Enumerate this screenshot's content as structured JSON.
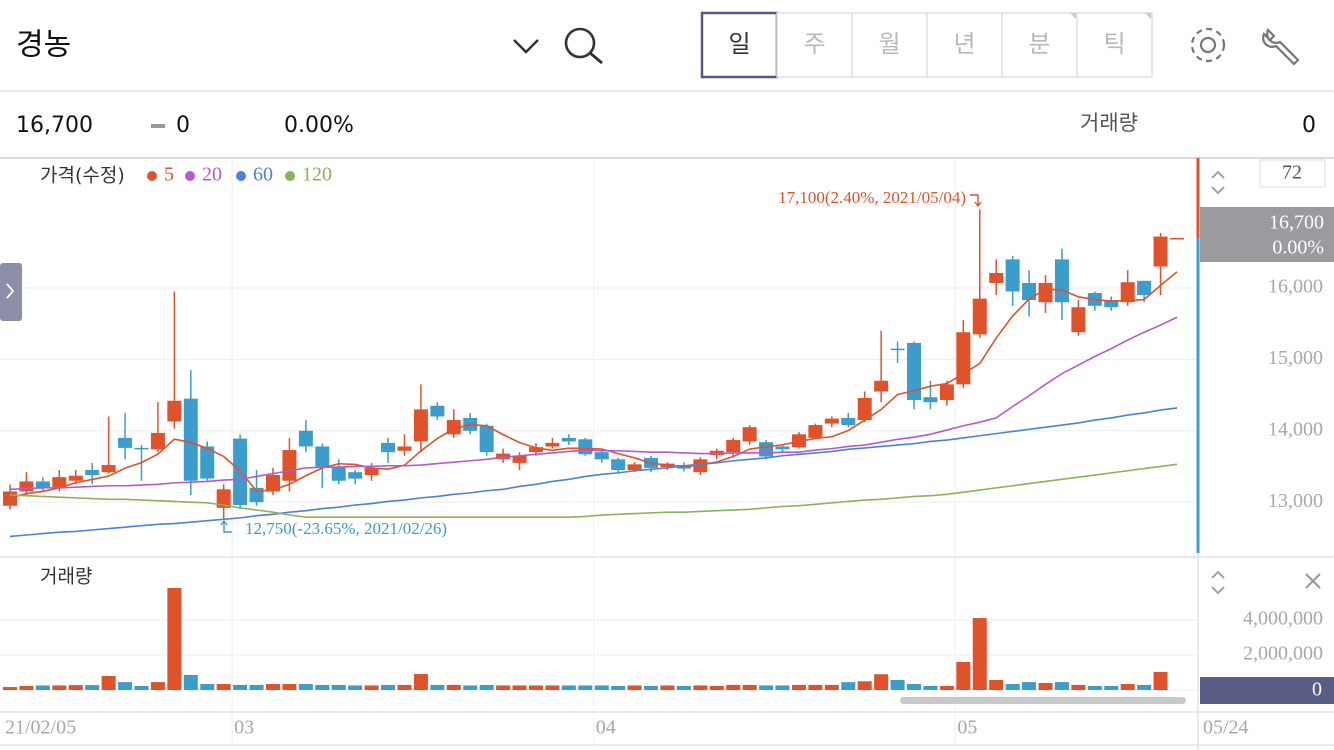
{
  "header": {
    "title": "경농",
    "tabs": [
      "일",
      "주",
      "월",
      "년",
      "분",
      "틱"
    ],
    "selected_tab": 0
  },
  "quote": {
    "price": "16,700",
    "change": 0,
    "change_pct": "0.00%",
    "volume_label": "거래량",
    "volume": 0
  },
  "panel": {
    "count": 72
  },
  "chart_data": [
    {
      "type": "candlestick",
      "ylim": [
        12260,
        17820
      ],
      "yticks": [
        {
          "value": 13000,
          "label": "13,000"
        },
        {
          "value": 14000,
          "label": "14,000"
        },
        {
          "value": 15000,
          "label": "15,000"
        },
        {
          "value": 16000,
          "label": "16,000"
        }
      ],
      "grid": true,
      "annotations": [
        "17,100(2.40%, 2021/05/04)",
        "12,750(-23.65%, 2021/02/26)"
      ],
      "series": [
        {
          "name": "가격(수정)",
          "up_color": "#e0522a",
          "down_color": "#3c9ccb",
          "open": [
            12950,
            13150,
            13290,
            13200,
            13300,
            13450,
            13420,
            13900,
            13760,
            13740,
            14130,
            14450,
            13780,
            12920,
            13890,
            13200,
            13150,
            13300,
            14000,
            13780,
            13500,
            13420,
            13380,
            13830,
            13720,
            13850,
            14350,
            13950,
            14180,
            14070,
            13600,
            13550,
            13700,
            13780,
            13900,
            13880,
            13700,
            13600,
            13450,
            13620,
            13490,
            13520,
            13420,
            13660,
            13700,
            13850,
            13840,
            13780,
            13770,
            13900,
            14100,
            14180,
            14150,
            14550,
            15150,
            15230,
            14470,
            14430,
            14650,
            15350,
            16070,
            16400,
            16070,
            15800,
            16400,
            15380,
            15930,
            15830,
            15800,
            16100,
            16300,
            16700
          ],
          "high": [
            13250,
            13420,
            13350,
            13450,
            13450,
            13550,
            14200,
            14250,
            13800,
            14400,
            15950,
            14850,
            13850,
            13250,
            13950,
            13450,
            13480,
            13900,
            14150,
            13820,
            13600,
            13450,
            13550,
            13900,
            13950,
            14650,
            14400,
            14300,
            14250,
            14100,
            13750,
            13700,
            13830,
            13900,
            13950,
            13900,
            13720,
            13620,
            13560,
            13650,
            13560,
            13560,
            13630,
            13750,
            13900,
            14080,
            13870,
            13800,
            13980,
            14100,
            14200,
            14250,
            14550,
            15400,
            15250,
            15250,
            14700,
            14700,
            15550,
            17100,
            16400,
            16450,
            16250,
            16180,
            16550,
            15830,
            15950,
            15880,
            16250,
            16100,
            16770,
            16700
          ],
          "low": [
            12900,
            13100,
            13150,
            13150,
            13250,
            13250,
            13400,
            13600,
            13300,
            13700,
            14030,
            13100,
            13300,
            12750,
            12900,
            12950,
            13100,
            13150,
            13700,
            13200,
            13250,
            13250,
            13300,
            13550,
            13650,
            13700,
            14150,
            13900,
            13950,
            13650,
            13550,
            13450,
            13650,
            13750,
            13800,
            13650,
            13550,
            13400,
            13420,
            13420,
            13450,
            13430,
            13380,
            13600,
            13650,
            13800,
            13600,
            13700,
            13750,
            13880,
            14050,
            14050,
            14120,
            14400,
            14950,
            14300,
            14300,
            14350,
            14600,
            15300,
            15900,
            15750,
            15600,
            15650,
            15550,
            15330,
            15680,
            15680,
            15750,
            15800,
            15900,
            16700
          ],
          "close": [
            13150,
            13290,
            13200,
            13350,
            13370,
            13380,
            13520,
            13760,
            13740,
            13970,
            14420,
            13300,
            13330,
            13180,
            12960,
            13000,
            13380,
            13730,
            13780,
            13500,
            13300,
            13330,
            13480,
            13700,
            13780,
            14300,
            14200,
            14150,
            14000,
            13700,
            13680,
            13650,
            13770,
            13830,
            13850,
            13670,
            13600,
            13450,
            13530,
            13480,
            13540,
            13470,
            13600,
            13720,
            13870,
            14050,
            13640,
            13740,
            13950,
            14080,
            14170,
            14080,
            14460,
            14700,
            15130,
            14430,
            14400,
            14650,
            15380,
            15850,
            16210,
            15950,
            15830,
            16070,
            15800,
            15730,
            15750,
            15730,
            16080,
            15900,
            16720,
            16700
          ]
        },
        {
          "name": "5",
          "color": "#e0522a",
          "values": [
            13060,
            13120,
            13150,
            13200,
            13272,
            13318,
            13364,
            13476,
            13554,
            13674,
            13882,
            13838,
            13752,
            13640,
            13438,
            13154,
            13170,
            13250,
            13370,
            13478,
            13538,
            13528,
            13478,
            13462,
            13518,
            13718,
            13892,
            14026,
            14086,
            14070,
            13946,
            13836,
            13760,
            13726,
            13756,
            13754,
            13744,
            13680,
            13620,
            13546,
            13520,
            13494,
            13524,
            13562,
            13640,
            13742,
            13776,
            13804,
            13850,
            13892,
            13916,
            14004,
            14148,
            14298,
            14508,
            14560,
            14624,
            14662,
            14798,
            14942,
            15298,
            15608,
            15844,
            15982,
            15972,
            15876,
            15836,
            15816,
            15818,
            15838,
            16036,
            16226
          ]
        },
        {
          "name": "20",
          "color": "#b45ad1",
          "values": [
            13180,
            13190,
            13200,
            13200,
            13210,
            13220,
            13230,
            13230,
            13240,
            13250,
            13270,
            13280,
            13290,
            13310,
            13320,
            13360,
            13400,
            13440,
            13480,
            13490,
            13490,
            13500,
            13500,
            13510,
            13510,
            13520,
            13540,
            13560,
            13580,
            13600,
            13630,
            13650,
            13670,
            13690,
            13710,
            13730,
            13720,
            13720,
            13710,
            13700,
            13700,
            13690,
            13680,
            13680,
            13690,
            13690,
            13690,
            13700,
            13700,
            13730,
            13750,
            13780,
            13800,
            13840,
            13880,
            13910,
            13950,
            14010,
            14070,
            14120,
            14180,
            14340,
            14490,
            14650,
            14800,
            14920,
            15040,
            15150,
            15270,
            15380,
            15480,
            15590
          ]
        },
        {
          "name": "60",
          "color": "#4c82d8",
          "values": [
            12520,
            12540,
            12560,
            12580,
            12590,
            12610,
            12630,
            12650,
            12670,
            12690,
            12700,
            12720,
            12740,
            12760,
            12780,
            12810,
            12830,
            12860,
            12880,
            12910,
            12930,
            12960,
            12980,
            13010,
            13030,
            13060,
            13080,
            13110,
            13130,
            13160,
            13180,
            13220,
            13250,
            13290,
            13320,
            13360,
            13390,
            13410,
            13440,
            13460,
            13480,
            13510,
            13530,
            13550,
            13580,
            13600,
            13620,
            13650,
            13670,
            13690,
            13710,
            13740,
            13760,
            13780,
            13800,
            13820,
            13850,
            13870,
            13900,
            13930,
            13960,
            13990,
            14020,
            14050,
            14080,
            14110,
            14150,
            14180,
            14220,
            14250,
            14290,
            14320
          ]
        },
        {
          "name": "120",
          "color": "#8db25a",
          "values": [
            13100,
            13090,
            13080,
            13070,
            13060,
            13050,
            13040,
            13040,
            13030,
            13020,
            13010,
            13000,
            12990,
            12960,
            12920,
            12890,
            12860,
            12820,
            12790,
            12790,
            12790,
            12790,
            12790,
            12790,
            12790,
            12790,
            12790,
            12790,
            12790,
            12790,
            12790,
            12790,
            12790,
            12790,
            12790,
            12800,
            12820,
            12830,
            12840,
            12850,
            12860,
            12860,
            12870,
            12880,
            12890,
            12900,
            12920,
            12940,
            12950,
            12970,
            12990,
            13010,
            13030,
            13040,
            13060,
            13080,
            13090,
            13110,
            13140,
            13170,
            13200,
            13230,
            13260,
            13290,
            13320,
            13350,
            13380,
            13410,
            13440,
            13470,
            13500,
            13530
          ]
        }
      ]
    },
    {
      "type": "bar",
      "title": "거래량",
      "ylim": [
        0,
        7430000
      ],
      "yticks": [
        0,
        {
          "value": 2000000,
          "label": "2,000,000"
        },
        {
          "value": 4000000,
          "label": "4,000,000"
        }
      ],
      "categories": [
        "21/02/05",
        null,
        null,
        null,
        null,
        null,
        null,
        null,
        null,
        null,
        null,
        null,
        null,
        null,
        "03",
        null,
        null,
        null,
        null,
        null,
        null,
        null,
        null,
        null,
        null,
        null,
        null,
        null,
        null,
        null,
        null,
        null,
        null,
        null,
        null,
        null,
        "04",
        null,
        null,
        null,
        null,
        null,
        null,
        null,
        null,
        null,
        null,
        null,
        null,
        null,
        null,
        null,
        null,
        null,
        null,
        null,
        null,
        null,
        "05",
        null,
        null,
        null,
        null,
        null,
        null,
        null,
        null,
        null,
        null,
        null,
        null,
        "05/24"
      ],
      "values": [
        170000,
        230000,
        260000,
        260000,
        280000,
        280000,
        800000,
        450000,
        230000,
        450000,
        5830000,
        860000,
        340000,
        340000,
        290000,
        290000,
        340000,
        340000,
        340000,
        290000,
        290000,
        260000,
        260000,
        290000,
        290000,
        910000,
        290000,
        290000,
        260000,
        290000,
        260000,
        260000,
        260000,
        260000,
        260000,
        260000,
        260000,
        230000,
        260000,
        230000,
        260000,
        230000,
        260000,
        230000,
        290000,
        290000,
        260000,
        260000,
        290000,
        290000,
        290000,
        450000,
        500000,
        900000,
        570000,
        340000,
        230000,
        230000,
        1600000,
        4110000,
        570000,
        340000,
        450000,
        400000,
        450000,
        290000,
        230000,
        230000,
        340000,
        290000,
        1030000,
        0
      ]
    }
  ]
}
